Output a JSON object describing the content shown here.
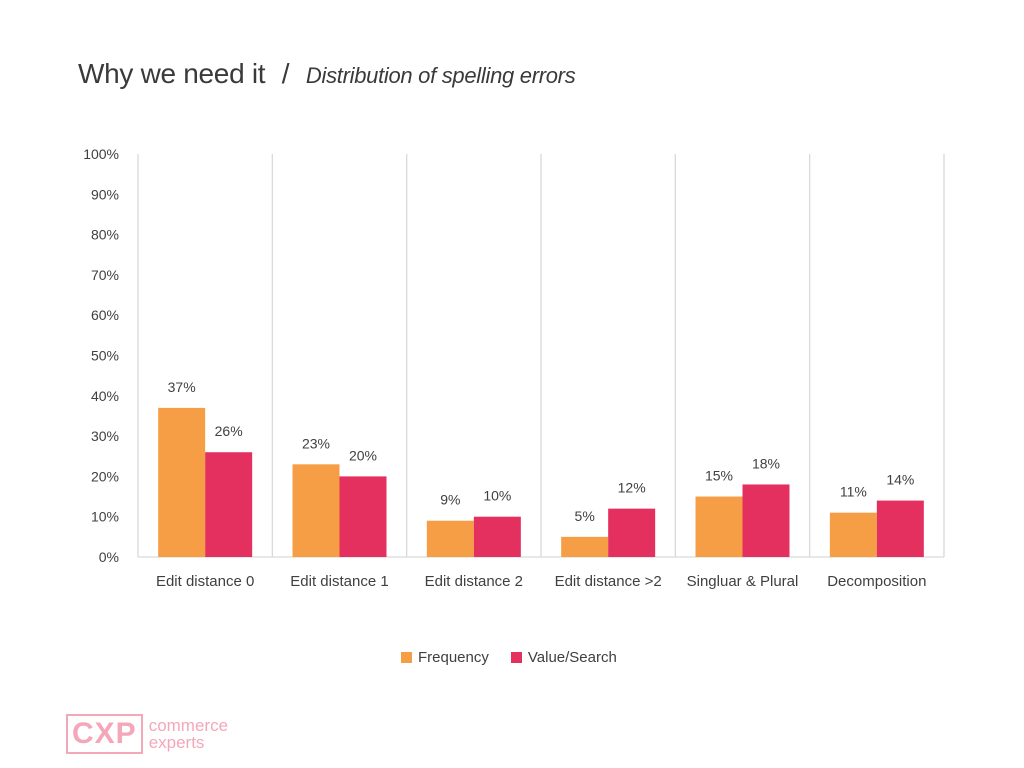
{
  "header": {
    "title": "Why we need it",
    "separator": "/",
    "subtitle": "Distribution of spelling errors"
  },
  "chart_data": {
    "type": "bar",
    "categories": [
      "Edit distance 0",
      "Edit distance 1",
      "Edit distance 2",
      "Edit distance >2",
      "Singluar & Plural",
      "Decomposition"
    ],
    "series": [
      {
        "name": "Frequency",
        "values": [
          37,
          23,
          9,
          5,
          15,
          11
        ],
        "color": "#f59e45"
      },
      {
        "name": "Value/Search",
        "values": [
          26,
          20,
          10,
          12,
          18,
          14
        ],
        "color": "#e3305f"
      }
    ],
    "yticks": [
      "0%",
      "10%",
      "20%",
      "30%",
      "40%",
      "50%",
      "60%",
      "70%",
      "80%",
      "90%",
      "100%"
    ],
    "ylim": [
      0,
      100
    ],
    "unit": "%",
    "grid": "vertical category separators",
    "legend_position": "bottom"
  },
  "legend": {
    "items": [
      {
        "label": "Frequency",
        "color": "#f59e45"
      },
      {
        "label": "Value/Search",
        "color": "#e3305f"
      }
    ]
  },
  "logo": {
    "mark": "CXP",
    "line1": "commerce",
    "line2": "experts",
    "color": "#f4a7b9"
  }
}
